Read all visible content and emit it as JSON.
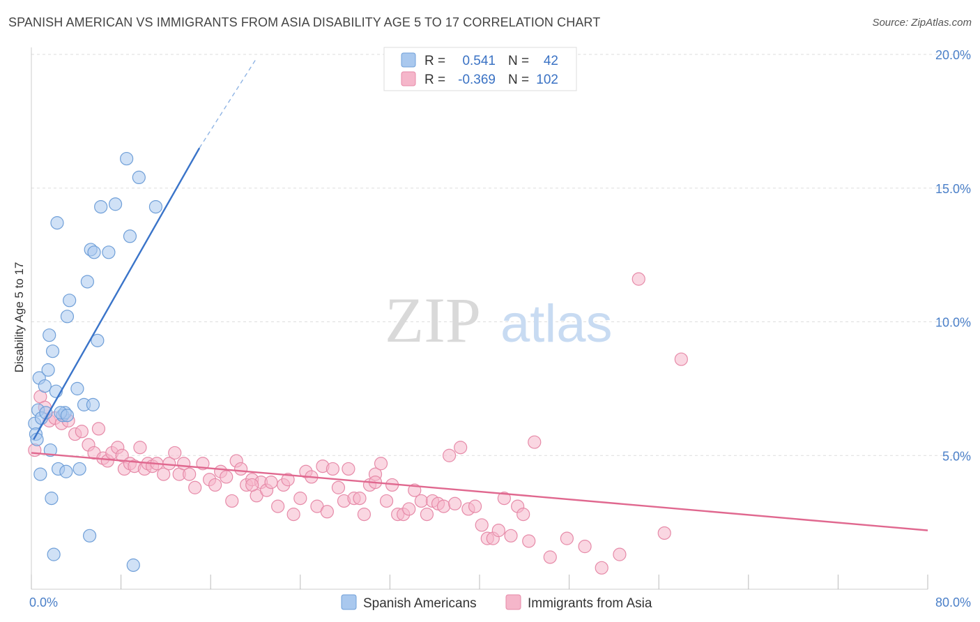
{
  "title": "SPANISH AMERICAN VS IMMIGRANTS FROM ASIA DISABILITY AGE 5 TO 17 CORRELATION CHART",
  "source": "Source: ZipAtlas.com",
  "watermark": {
    "zip": "ZIP",
    "atlas": "atlas"
  },
  "colors": {
    "blue_fill": "#a9c8ee",
    "blue_stroke": "#6f9fd8",
    "blue_line": "#3a74c9",
    "pink_fill": "#f5b6ca",
    "pink_stroke": "#e68aa8",
    "pink_line": "#e0688f",
    "grid": "#dddddd",
    "tick_text": "#4a7fc8"
  },
  "legend": {
    "rows": [
      {
        "r_label": "R =",
        "r_value": "0.541",
        "n_label": "N =",
        "n_value": "42"
      },
      {
        "r_label": "R =",
        "r_value": "-0.369",
        "n_label": "N =",
        "n_value": "102"
      }
    ]
  },
  "bottom_legend": [
    "Spanish Americans",
    "Immigrants from Asia"
  ],
  "chart_data": {
    "type": "scatter",
    "title": "SPANISH AMERICAN VS IMMIGRANTS FROM ASIA DISABILITY AGE 5 TO 17 CORRELATION CHART",
    "xlabel": "",
    "ylabel": "Disability Age 5 to 17",
    "xlim": [
      0,
      80
    ],
    "ylim": [
      0,
      20
    ],
    "x_tick_labels": [
      "0.0%",
      "80.0%"
    ],
    "y_tick_labels": [
      "5.0%",
      "10.0%",
      "15.0%",
      "20.0%"
    ],
    "y_ticks": [
      5,
      10,
      15,
      20
    ],
    "grid": true,
    "legend_position": "top-center",
    "series": [
      {
        "name": "Spanish Americans",
        "color": "#a9c8ee",
        "points": [
          [
            0.3,
            6.2
          ],
          [
            0.4,
            5.8
          ],
          [
            0.5,
            5.6
          ],
          [
            0.6,
            6.7
          ],
          [
            0.7,
            7.9
          ],
          [
            0.8,
            4.3
          ],
          [
            0.9,
            6.4
          ],
          [
            1.2,
            7.6
          ],
          [
            1.3,
            6.6
          ],
          [
            1.5,
            8.2
          ],
          [
            1.6,
            9.5
          ],
          [
            1.7,
            5.2
          ],
          [
            1.8,
            3.4
          ],
          [
            1.9,
            8.9
          ],
          [
            2.0,
            1.3
          ],
          [
            2.2,
            7.4
          ],
          [
            2.3,
            13.7
          ],
          [
            2.4,
            4.5
          ],
          [
            2.8,
            6.5
          ],
          [
            3.0,
            6.6
          ],
          [
            3.1,
            4.4
          ],
          [
            3.2,
            10.2
          ],
          [
            3.4,
            10.8
          ],
          [
            4.1,
            7.5
          ],
          [
            4.3,
            4.5
          ],
          [
            4.7,
            6.9
          ],
          [
            5.0,
            11.5
          ],
          [
            5.2,
            2.0
          ],
          [
            5.3,
            12.7
          ],
          [
            5.5,
            6.9
          ],
          [
            5.6,
            12.6
          ],
          [
            5.9,
            9.3
          ],
          [
            6.2,
            14.3
          ],
          [
            6.9,
            12.6
          ],
          [
            7.5,
            14.4
          ],
          [
            8.5,
            16.1
          ],
          [
            8.8,
            13.2
          ],
          [
            9.1,
            0.9
          ],
          [
            9.6,
            15.4
          ],
          [
            11.1,
            14.3
          ],
          [
            2.6,
            6.6
          ],
          [
            3.2,
            6.5
          ]
        ]
      },
      {
        "name": "Immigrants from Asia",
        "color": "#f5b6ca",
        "points": [
          [
            0.3,
            5.2
          ],
          [
            0.8,
            7.2
          ],
          [
            1.2,
            6.8
          ],
          [
            1.6,
            6.3
          ],
          [
            2.1,
            6.4
          ],
          [
            2.7,
            6.2
          ],
          [
            3.3,
            6.3
          ],
          [
            3.9,
            5.8
          ],
          [
            4.5,
            5.9
          ],
          [
            5.1,
            5.4
          ],
          [
            5.6,
            5.1
          ],
          [
            6.0,
            6.0
          ],
          [
            6.4,
            4.9
          ],
          [
            6.8,
            4.8
          ],
          [
            7.2,
            5.1
          ],
          [
            7.7,
            5.3
          ],
          [
            8.1,
            5.0
          ],
          [
            8.3,
            4.5
          ],
          [
            8.8,
            4.7
          ],
          [
            9.2,
            4.6
          ],
          [
            9.7,
            5.3
          ],
          [
            10.1,
            4.5
          ],
          [
            10.4,
            4.7
          ],
          [
            10.8,
            4.6
          ],
          [
            11.2,
            4.7
          ],
          [
            11.8,
            4.3
          ],
          [
            12.3,
            4.7
          ],
          [
            12.8,
            5.1
          ],
          [
            13.2,
            4.3
          ],
          [
            13.6,
            4.7
          ],
          [
            14.1,
            4.3
          ],
          [
            14.6,
            3.8
          ],
          [
            15.3,
            4.7
          ],
          [
            15.9,
            4.1
          ],
          [
            16.4,
            3.9
          ],
          [
            16.9,
            4.4
          ],
          [
            17.4,
            4.2
          ],
          [
            17.9,
            3.3
          ],
          [
            18.3,
            4.8
          ],
          [
            18.7,
            4.5
          ],
          [
            19.2,
            3.9
          ],
          [
            19.7,
            4.1
          ],
          [
            20.1,
            3.5
          ],
          [
            20.5,
            4.0
          ],
          [
            21.0,
            3.7
          ],
          [
            21.4,
            4.0
          ],
          [
            22.0,
            3.1
          ],
          [
            22.5,
            3.9
          ],
          [
            22.9,
            4.1
          ],
          [
            23.4,
            2.8
          ],
          [
            24.0,
            3.4
          ],
          [
            24.5,
            4.4
          ],
          [
            25.0,
            4.2
          ],
          [
            25.5,
            3.1
          ],
          [
            26.0,
            4.6
          ],
          [
            26.4,
            2.9
          ],
          [
            26.9,
            4.5
          ],
          [
            27.4,
            3.8
          ],
          [
            27.9,
            3.3
          ],
          [
            28.3,
            4.5
          ],
          [
            28.8,
            3.4
          ],
          [
            29.3,
            3.4
          ],
          [
            29.7,
            2.8
          ],
          [
            30.2,
            3.9
          ],
          [
            30.7,
            4.3
          ],
          [
            31.2,
            4.7
          ],
          [
            31.7,
            3.3
          ],
          [
            32.2,
            3.9
          ],
          [
            32.7,
            2.8
          ],
          [
            33.2,
            2.8
          ],
          [
            33.7,
            3.0
          ],
          [
            34.2,
            3.7
          ],
          [
            34.8,
            3.3
          ],
          [
            35.3,
            2.8
          ],
          [
            35.8,
            3.3
          ],
          [
            36.3,
            3.2
          ],
          [
            36.8,
            3.1
          ],
          [
            37.3,
            5.0
          ],
          [
            37.8,
            3.2
          ],
          [
            38.3,
            5.3
          ],
          [
            39.0,
            3.0
          ],
          [
            39.6,
            3.1
          ],
          [
            40.2,
            2.4
          ],
          [
            40.7,
            1.9
          ],
          [
            41.2,
            1.9
          ],
          [
            41.7,
            2.2
          ],
          [
            42.2,
            3.4
          ],
          [
            42.8,
            2.0
          ],
          [
            43.4,
            3.1
          ],
          [
            43.9,
            2.8
          ],
          [
            44.4,
            1.8
          ],
          [
            44.9,
            5.5
          ],
          [
            46.3,
            1.2
          ],
          [
            47.8,
            1.9
          ],
          [
            49.4,
            1.6
          ],
          [
            50.9,
            0.8
          ],
          [
            52.5,
            1.3
          ],
          [
            54.2,
            11.6
          ],
          [
            56.5,
            2.1
          ],
          [
            58.0,
            8.6
          ],
          [
            30.7,
            4.0
          ],
          [
            19.7,
            3.9
          ]
        ]
      }
    ],
    "trend_lines": [
      {
        "series": "Spanish Americans",
        "x": [
          0.2,
          15.0
        ],
        "y": [
          5.6,
          16.5
        ],
        "dashed_extension_to": [
          20.0,
          20.0
        ]
      },
      {
        "series": "Immigrants from Asia",
        "x": [
          0,
          80
        ],
        "y": [
          5.1,
          2.2
        ]
      }
    ]
  }
}
